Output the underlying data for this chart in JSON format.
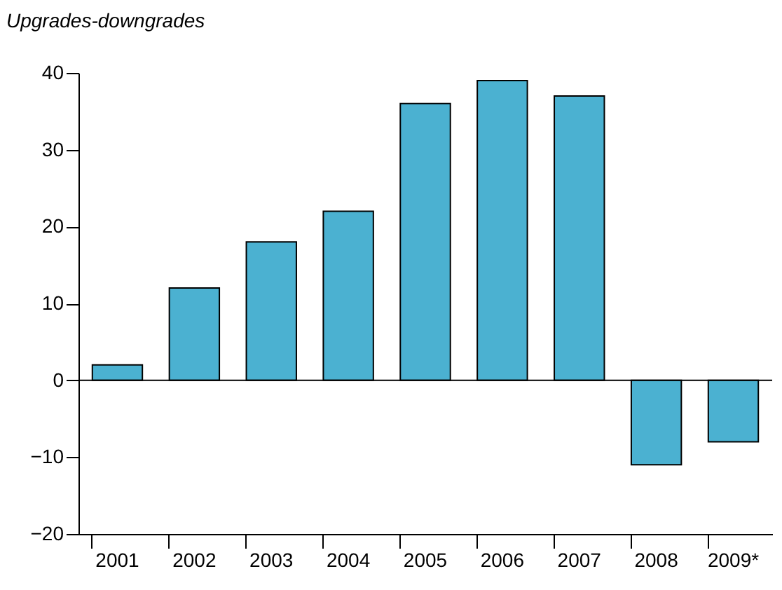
{
  "chart_data": {
    "type": "bar",
    "ylabel": "Upgrades-downgrades",
    "categories": [
      "2001",
      "2002",
      "2003",
      "2004",
      "2005",
      "2006",
      "2007",
      "2008",
      "2009*"
    ],
    "values": [
      2,
      12,
      18,
      22,
      36,
      39,
      37,
      -11,
      -8
    ],
    "color": "#4bb1d1",
    "ylim": [
      -20,
      40
    ],
    "yticks": [
      {
        "value": -20,
        "label": "−20"
      },
      {
        "value": -10,
        "label": "−10"
      },
      0,
      10,
      20,
      30,
      40
    ],
    "ref_lines": [
      {
        "axis": "y",
        "value": 0
      }
    ],
    "grid": false
  }
}
